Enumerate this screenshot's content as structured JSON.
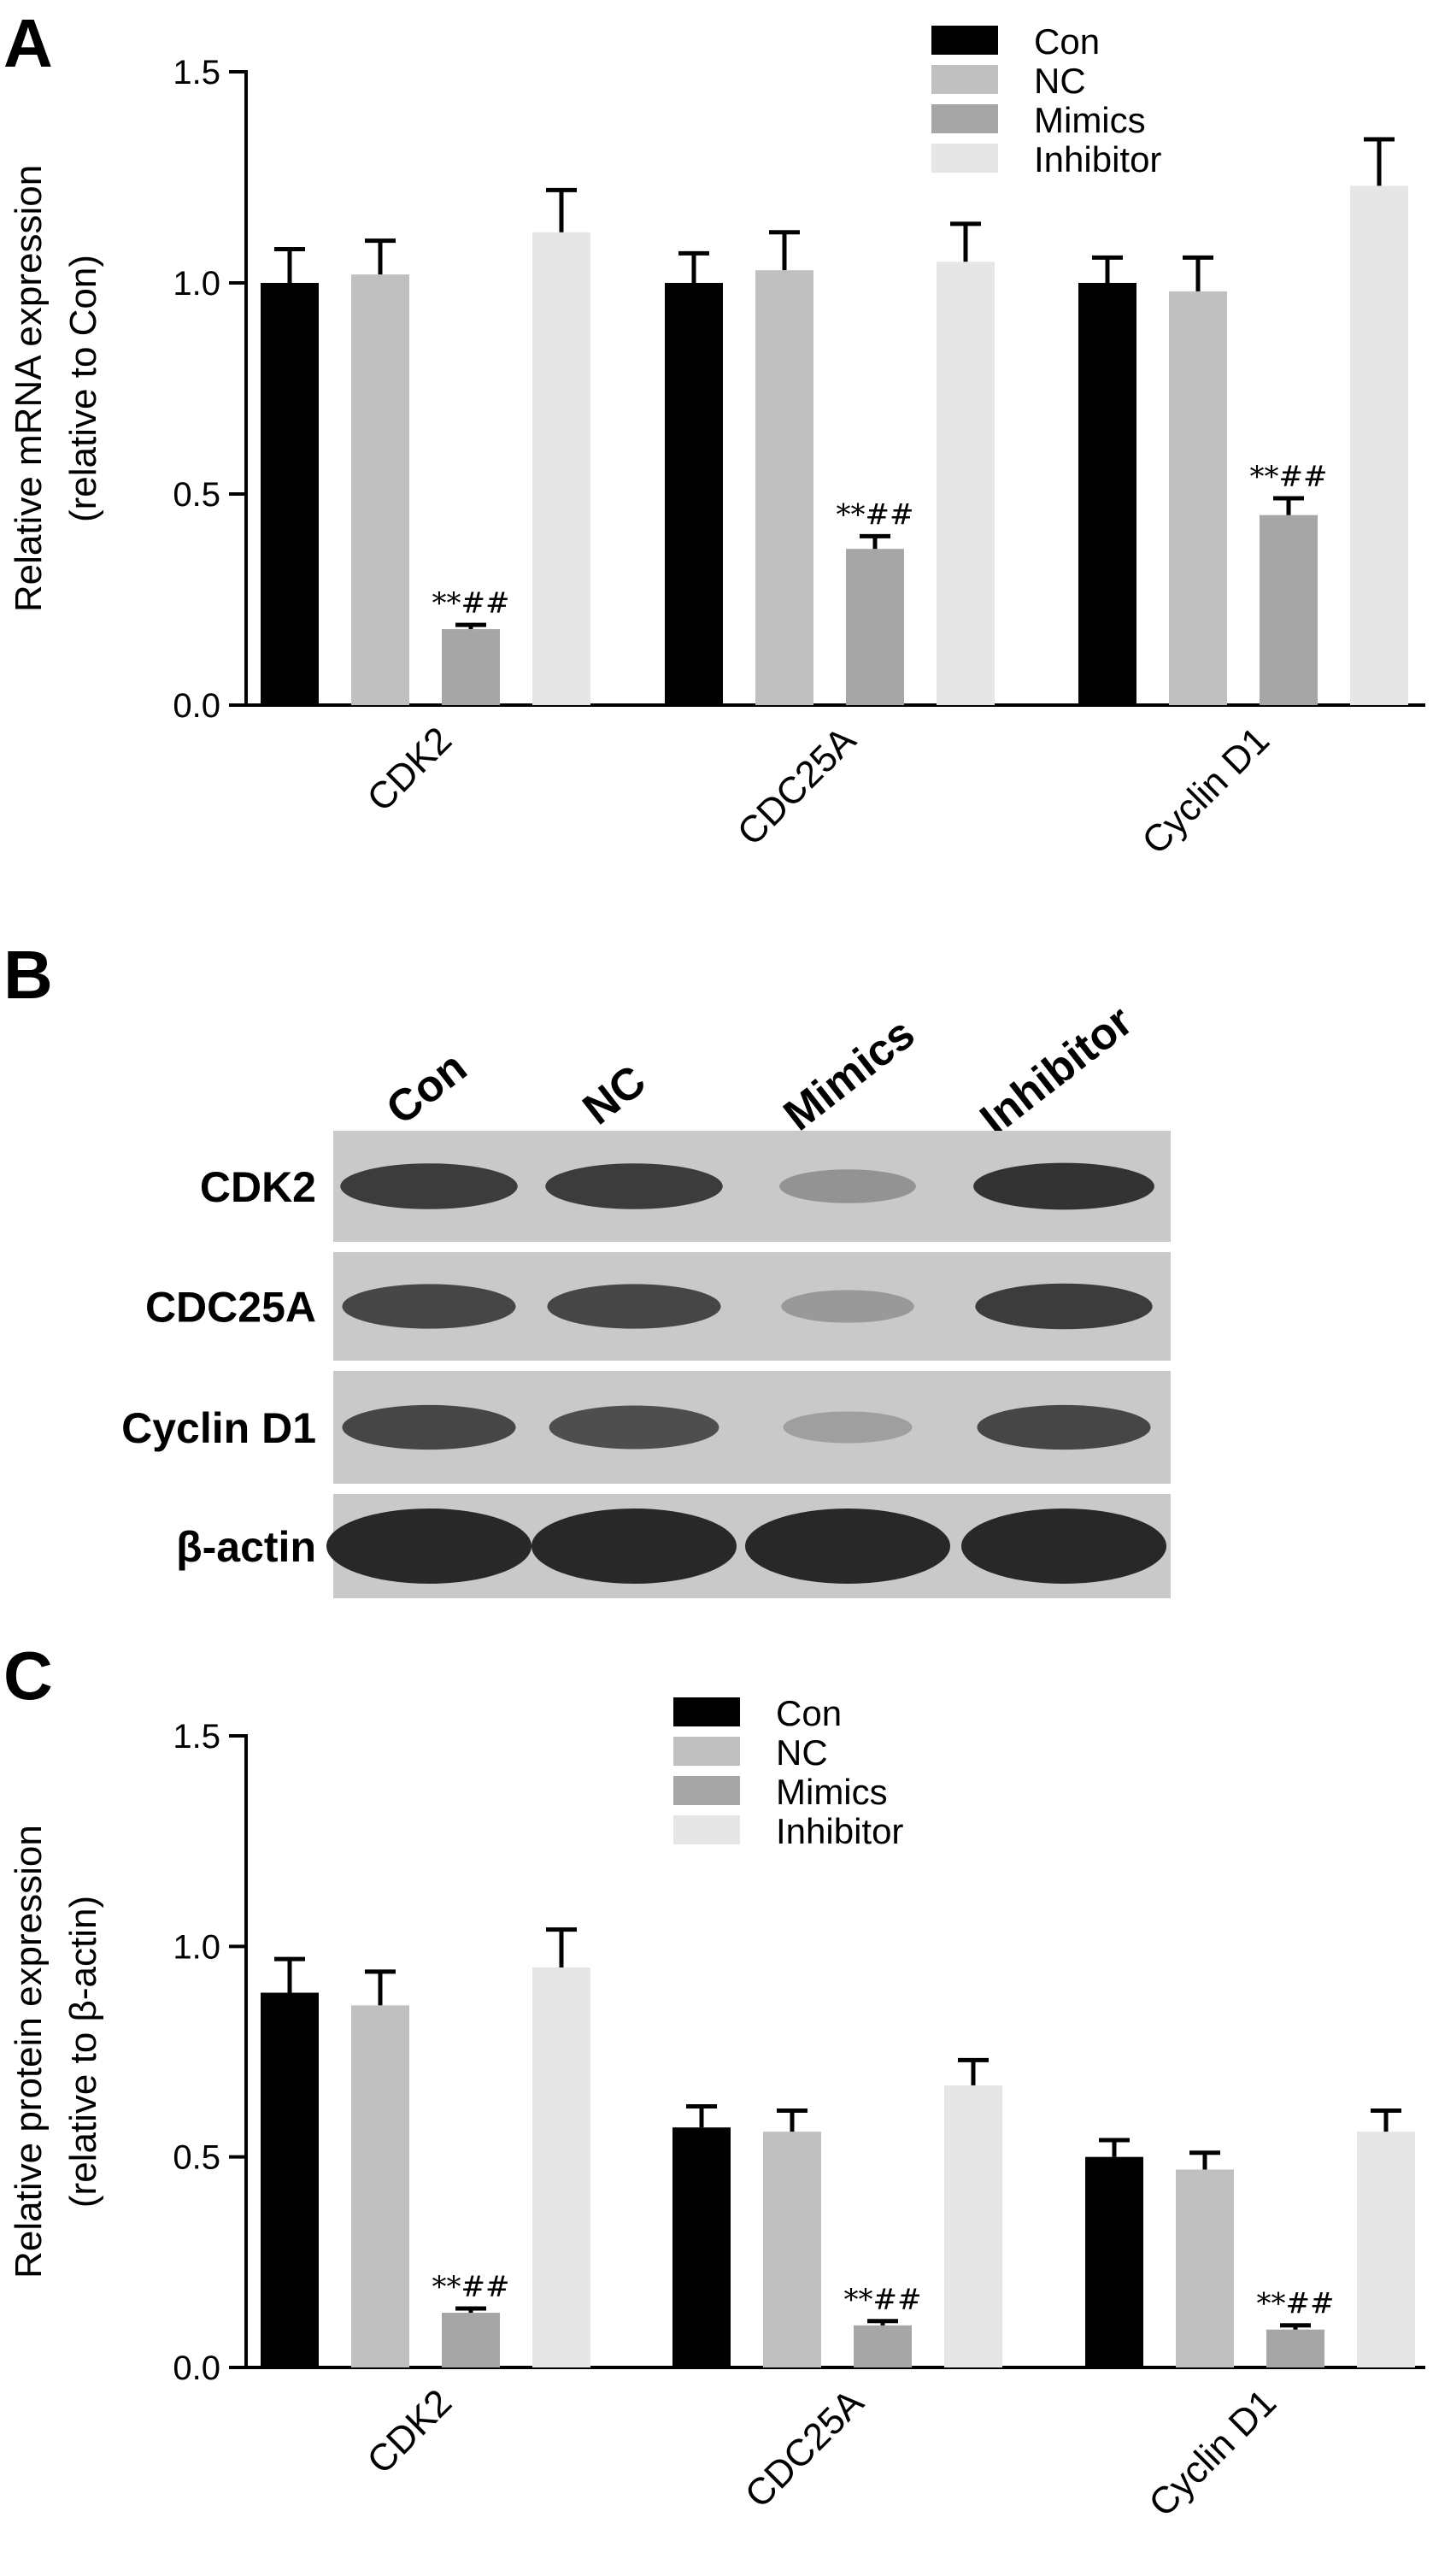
{
  "panels": {
    "a": "A",
    "b": "B",
    "c": "C"
  },
  "colors": {
    "Con": "#000000",
    "NC": "#c0c0c0",
    "Mimics": "#a6a6a6",
    "Inhibitor": "#e6e6e6"
  },
  "chart_data": [
    {
      "type": "bar",
      "panel": "A",
      "ylabel_line1": "Relative mRNA expression",
      "ylabel_line2": "(relative to Con)",
      "ylim": [
        0,
        1.5
      ],
      "yticks": [
        "0.0",
        "0.5",
        "1.0",
        "1.5"
      ],
      "categories": [
        "CDK2",
        "CDC25A",
        "Cyclin D1"
      ],
      "legend": [
        "Con",
        "NC",
        "Mimics",
        "Inhibitor"
      ],
      "legend_position": "top-right",
      "series": [
        {
          "name": "Con",
          "values": [
            1.0,
            1.0,
            1.0
          ],
          "errors": [
            0.08,
            0.07,
            0.06
          ]
        },
        {
          "name": "NC",
          "values": [
            1.02,
            1.03,
            0.98
          ],
          "errors": [
            0.08,
            0.09,
            0.08
          ]
        },
        {
          "name": "Mimics",
          "values": [
            0.18,
            0.37,
            0.45
          ],
          "errors": [
            0.01,
            0.03,
            0.04
          ]
        },
        {
          "name": "Inhibitor",
          "values": [
            1.12,
            1.05,
            1.23
          ],
          "errors": [
            0.1,
            0.09,
            0.11
          ]
        }
      ],
      "annotations": [
        {
          "category": "CDK2",
          "series": "Mimics",
          "text": "**##"
        },
        {
          "category": "CDC25A",
          "series": "Mimics",
          "text": "**##"
        },
        {
          "category": "Cyclin D1",
          "series": "Mimics",
          "text": "**##"
        }
      ]
    },
    {
      "type": "bar",
      "panel": "C",
      "ylabel_line1": "Relative protein expression",
      "ylabel_line2": "(relative to β-actin)",
      "ylim": [
        0,
        1.5
      ],
      "yticks": [
        "0.0",
        "0.5",
        "1.0",
        "1.5"
      ],
      "categories": [
        "CDK2",
        "CDC25A",
        "Cyclin D1"
      ],
      "legend": [
        "Con",
        "NC",
        "Mimics",
        "Inhibitor"
      ],
      "legend_position": "top-center",
      "series": [
        {
          "name": "Con",
          "values": [
            0.89,
            0.57,
            0.5
          ],
          "errors": [
            0.08,
            0.05,
            0.04
          ]
        },
        {
          "name": "NC",
          "values": [
            0.86,
            0.56,
            0.47
          ],
          "errors": [
            0.08,
            0.05,
            0.04
          ]
        },
        {
          "name": "Mimics",
          "values": [
            0.13,
            0.1,
            0.09
          ],
          "errors": [
            0.01,
            0.01,
            0.01
          ]
        },
        {
          "name": "Inhibitor",
          "values": [
            0.95,
            0.67,
            0.56
          ],
          "errors": [
            0.09,
            0.06,
            0.05
          ]
        }
      ],
      "annotations": [
        {
          "category": "CDK2",
          "series": "Mimics",
          "text": "**##"
        },
        {
          "category": "CDC25A",
          "series": "Mimics",
          "text": "**##"
        },
        {
          "category": "Cyclin D1",
          "series": "Mimics",
          "text": "**##"
        }
      ]
    }
  ],
  "western_blot": {
    "lanes": [
      "Con",
      "NC",
      "Mimics",
      "Inhibitor"
    ],
    "rows": [
      {
        "label": "CDK2",
        "intensities": [
          0.9,
          0.9,
          0.35,
          0.95
        ]
      },
      {
        "label": "CDC25A",
        "intensities": [
          0.85,
          0.85,
          0.3,
          0.9
        ]
      },
      {
        "label": "Cyclin D1",
        "intensities": [
          0.85,
          0.8,
          0.25,
          0.85
        ]
      },
      {
        "label": "β-actin",
        "intensities": [
          1.0,
          1.0,
          1.0,
          1.0
        ]
      }
    ]
  }
}
